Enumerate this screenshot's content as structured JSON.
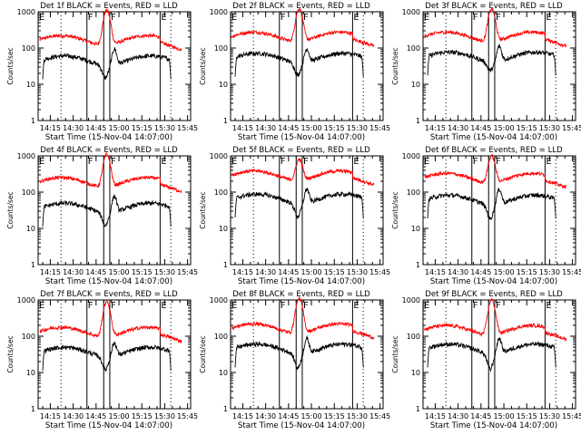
{
  "chart_data": [
    {
      "type": "line",
      "title": "Det 1f BLACK = Events, RED = LLD",
      "xlabel": "Start Time (15-Nov-04 14:07:00)",
      "ylabel": "Counts/sec",
      "y_scale": "log",
      "ylim": [
        1,
        1000
      ],
      "xlim": [
        "14:07",
        "15:47"
      ],
      "x_tick_labels": [
        "14:15",
        "14:30",
        "14:45",
        "15:00",
        "15:15",
        "15:30",
        "15:45"
      ],
      "y_tick_labels": [
        "1",
        "10",
        "100",
        "1000"
      ],
      "region_letters": [
        {
          "time": "14:07",
          "label": "E"
        },
        {
          "time": "14:39",
          "label": "F"
        },
        {
          "time": "14:54",
          "label": "F"
        },
        {
          "time": "15:27",
          "label": "E"
        }
      ],
      "solid_lines": [
        "14:39",
        "14:50",
        "14:54",
        "15:27"
      ],
      "dotted_lines": [
        "14:22",
        "15:34"
      ],
      "series": [
        {
          "name": "RED = LLD",
          "color": "#ff0000",
          "x_range": [
            "14:08",
            "15:41"
          ],
          "base": 200,
          "flare_peak": 1100
        },
        {
          "name": "BLACK = Events",
          "color": "#000000",
          "x_range": [
            "14:10",
            "15:34"
          ],
          "base": 55,
          "flare_peak": 110,
          "dip": 25
        }
      ]
    },
    {
      "type": "line",
      "title": "Det 2f BLACK = Events, RED = LLD",
      "xlabel": "Start Time (15-Nov-04 14:07:00)",
      "ylabel": "Counts/sec",
      "y_scale": "log",
      "ylim": [
        1,
        1000
      ],
      "xlim": [
        "14:07",
        "15:47"
      ],
      "x_tick_labels": [
        "14:15",
        "14:30",
        "14:45",
        "15:00",
        "15:15",
        "15:30",
        "15:45"
      ],
      "y_tick_labels": [
        "1",
        "10",
        "100",
        "1000"
      ],
      "region_letters": [
        {
          "time": "14:07",
          "label": "E"
        },
        {
          "time": "14:39",
          "label": "F"
        },
        {
          "time": "14:54",
          "label": "F"
        },
        {
          "time": "15:27",
          "label": "E"
        }
      ],
      "solid_lines": [
        "14:39",
        "14:50",
        "14:54",
        "15:27"
      ],
      "dotted_lines": [
        "14:22",
        "15:34"
      ],
      "series": [
        {
          "name": "RED = LLD",
          "color": "#ff0000",
          "x_range": [
            "14:08",
            "15:41"
          ],
          "base": 250,
          "flare_peak": 1200
        },
        {
          "name": "BLACK = Events",
          "color": "#000000",
          "x_range": [
            "14:10",
            "15:34"
          ],
          "base": 65,
          "flare_peak": 110,
          "dip": 30
        }
      ]
    },
    {
      "type": "line",
      "title": "Det 3f BLACK = Events, RED = LLD",
      "xlabel": "Start Time (15-Nov-04 14:07:00)",
      "ylabel": "Counts/sec",
      "y_scale": "log",
      "ylim": [
        1,
        1000
      ],
      "xlim": [
        "14:07",
        "15:47"
      ],
      "x_tick_labels": [
        "14:15",
        "14:30",
        "14:45",
        "15:00",
        "15:15",
        "15:30",
        "15:45"
      ],
      "y_tick_labels": [
        "1",
        "10",
        "100",
        "1000"
      ],
      "region_letters": [
        {
          "time": "14:07",
          "label": "E"
        },
        {
          "time": "14:39",
          "label": "F"
        },
        {
          "time": "14:54",
          "label": "F"
        },
        {
          "time": "15:27",
          "label": "E"
        }
      ],
      "solid_lines": [
        "14:39",
        "14:50",
        "14:54",
        "15:27"
      ],
      "dotted_lines": [
        "14:22",
        "15:34"
      ],
      "series": [
        {
          "name": "RED = LLD",
          "color": "#ff0000",
          "x_range": [
            "14:08",
            "15:41"
          ],
          "base": 250,
          "flare_peak": 1200
        },
        {
          "name": "BLACK = Events",
          "color": "#000000",
          "x_range": [
            "14:10",
            "15:34"
          ],
          "base": 70,
          "flare_peak": 130,
          "dip": 40
        }
      ]
    },
    {
      "type": "line",
      "title": "Det 4f BLACK = Events, RED = LLD",
      "xlabel": "Start Time (15-Nov-04 14:07:00)",
      "ylabel": "Counts/sec",
      "y_scale": "log",
      "ylim": [
        1,
        1000
      ],
      "xlim": [
        "14:07",
        "15:47"
      ],
      "x_tick_labels": [
        "14:15",
        "14:30",
        "14:45",
        "15:00",
        "15:15",
        "15:30",
        "15:45"
      ],
      "y_tick_labels": [
        "1",
        "10",
        "100",
        "1000"
      ],
      "region_letters": [
        {
          "time": "14:07",
          "label": "E"
        },
        {
          "time": "14:39",
          "label": "F"
        },
        {
          "time": "14:54",
          "label": "F"
        },
        {
          "time": "15:27",
          "label": "E"
        }
      ],
      "solid_lines": [
        "14:39",
        "14:50",
        "14:54",
        "15:27"
      ],
      "dotted_lines": [
        "14:22",
        "15:34"
      ],
      "series": [
        {
          "name": "RED = LLD",
          "color": "#ff0000",
          "x_range": [
            "14:08",
            "15:41"
          ],
          "base": 230,
          "flare_peak": 1100
        },
        {
          "name": "BLACK = Events",
          "color": "#000000",
          "x_range": [
            "14:10",
            "15:34"
          ],
          "base": 45,
          "flare_peak": 90,
          "dip": 20
        }
      ]
    },
    {
      "type": "line",
      "title": "Det 5f BLACK = Events, RED = LLD",
      "xlabel": "Start Time (15-Nov-04 14:07:00)",
      "ylabel": "Counts/sec",
      "y_scale": "log",
      "ylim": [
        1,
        1000
      ],
      "xlim": [
        "14:07",
        "15:47"
      ],
      "x_tick_labels": [
        "14:15",
        "14:30",
        "14:45",
        "15:00",
        "15:15",
        "15:30",
        "15:45"
      ],
      "y_tick_labels": [
        "1",
        "10",
        "100",
        "1000"
      ],
      "region_letters": [
        {
          "time": "14:07",
          "label": "E"
        },
        {
          "time": "14:39",
          "label": "F"
        },
        {
          "time": "14:54",
          "label": "F"
        },
        {
          "time": "15:27",
          "label": "E"
        }
      ],
      "solid_lines": [
        "14:39",
        "14:50",
        "14:54",
        "15:27"
      ],
      "dotted_lines": [
        "14:22",
        "15:34"
      ],
      "series": [
        {
          "name": "RED = LLD",
          "color": "#ff0000",
          "x_range": [
            "14:08",
            "15:41"
          ],
          "base": 350,
          "flare_peak": 800
        },
        {
          "name": "BLACK = Events",
          "color": "#000000",
          "x_range": [
            "14:10",
            "15:34"
          ],
          "base": 80,
          "flare_peak": 140,
          "dip": 35
        }
      ]
    },
    {
      "type": "line",
      "title": "Det 6f BLACK = Events, RED = LLD",
      "xlabel": "Start Time (15-Nov-04 14:07:00)",
      "ylabel": "Counts/sec",
      "y_scale": "log",
      "ylim": [
        1,
        1000
      ],
      "xlim": [
        "14:07",
        "15:47"
      ],
      "x_tick_labels": [
        "14:15",
        "14:30",
        "14:45",
        "15:00",
        "15:15",
        "15:30",
        "15:45"
      ],
      "y_tick_labels": [
        "1",
        "10",
        "100",
        "1000"
      ],
      "region_letters": [
        {
          "time": "14:07",
          "label": "E"
        },
        {
          "time": "14:39",
          "label": "F"
        },
        {
          "time": "14:54",
          "label": "F"
        },
        {
          "time": "15:27",
          "label": "E"
        }
      ],
      "solid_lines": [
        "14:39",
        "14:50",
        "14:54",
        "15:27"
      ],
      "dotted_lines": [
        "14:22",
        "15:34"
      ],
      "series": [
        {
          "name": "RED = LLD",
          "color": "#ff0000",
          "x_range": [
            "14:08",
            "15:41"
          ],
          "base": 300,
          "flare_peak": 1000
        },
        {
          "name": "BLACK = Events",
          "color": "#000000",
          "x_range": [
            "14:10",
            "15:34"
          ],
          "base": 75,
          "flare_peak": 140,
          "dip": 30
        }
      ]
    },
    {
      "type": "line",
      "title": "Det 7f BLACK = Events, RED = LLD",
      "xlabel": "Start Time (15-Nov-04 14:07:00)",
      "ylabel": "Counts/sec",
      "y_scale": "log",
      "ylim": [
        1,
        1000
      ],
      "xlim": [
        "14:07",
        "15:47"
      ],
      "x_tick_labels": [
        "14:15",
        "14:30",
        "14:45",
        "15:00",
        "15:15",
        "15:30",
        "15:45"
      ],
      "y_tick_labels": [
        "1",
        "10",
        "100",
        "1000"
      ],
      "region_letters": [
        {
          "time": "14:07",
          "label": "E"
        },
        {
          "time": "14:39",
          "label": "F"
        },
        {
          "time": "14:54",
          "label": "F"
        },
        {
          "time": "15:27",
          "label": "E"
        }
      ],
      "solid_lines": [
        "14:39",
        "14:50",
        "14:54",
        "15:27"
      ],
      "dotted_lines": [
        "14:22",
        "15:34"
      ],
      "series": [
        {
          "name": "RED = LLD",
          "color": "#ff0000",
          "x_range": [
            "14:08",
            "15:41"
          ],
          "base": 160,
          "flare_peak": 900
        },
        {
          "name": "BLACK = Events",
          "color": "#000000",
          "x_range": [
            "14:10",
            "15:34"
          ],
          "base": 45,
          "flare_peak": 75,
          "dip": 20
        }
      ]
    },
    {
      "type": "line",
      "title": "Det 8f BLACK = Events, RED = LLD",
      "xlabel": "Start Time (15-Nov-04 14:07:00)",
      "ylabel": "Counts/sec",
      "y_scale": "log",
      "ylim": [
        1,
        1000
      ],
      "xlim": [
        "14:07",
        "15:47"
      ],
      "x_tick_labels": [
        "14:15",
        "14:30",
        "14:45",
        "15:00",
        "15:15",
        "15:30",
        "15:45"
      ],
      "y_tick_labels": [
        "1",
        "10",
        "100",
        "1000"
      ],
      "region_letters": [
        {
          "time": "14:07",
          "label": "E"
        },
        {
          "time": "14:39",
          "label": "F"
        },
        {
          "time": "14:54",
          "label": "F"
        },
        {
          "time": "15:27",
          "label": "E"
        }
      ],
      "solid_lines": [
        "14:39",
        "14:50",
        "14:54",
        "15:27"
      ],
      "dotted_lines": [
        "14:22",
        "15:34"
      ],
      "series": [
        {
          "name": "RED = LLD",
          "color": "#ff0000",
          "x_range": [
            "14:08",
            "15:41"
          ],
          "base": 200,
          "flare_peak": 1100
        },
        {
          "name": "BLACK = Events",
          "color": "#000000",
          "x_range": [
            "14:10",
            "15:34"
          ],
          "base": 55,
          "flare_peak": 100,
          "dip": 22
        }
      ]
    },
    {
      "type": "line",
      "title": "Det 9f BLACK = Events, RED = LLD",
      "xlabel": "Start Time (15-Nov-04 14:07:00)",
      "ylabel": "Counts/sec",
      "y_scale": "log",
      "ylim": [
        1,
        1000
      ],
      "xlim": [
        "14:07",
        "15:47"
      ],
      "x_tick_labels": [
        "14:15",
        "14:30",
        "14:45",
        "15:00",
        "15:15",
        "15:30",
        "15:45"
      ],
      "y_tick_labels": [
        "1",
        "10",
        "100",
        "1000"
      ],
      "region_letters": [
        {
          "time": "14:07",
          "label": "E"
        },
        {
          "time": "14:39",
          "label": "F"
        },
        {
          "time": "14:54",
          "label": "F"
        },
        {
          "time": "15:27",
          "label": "E"
        }
      ],
      "solid_lines": [
        "14:39",
        "14:50",
        "14:54",
        "15:27"
      ],
      "dotted_lines": [
        "14:22",
        "15:34"
      ],
      "series": [
        {
          "name": "RED = LLD",
          "color": "#ff0000",
          "x_range": [
            "14:08",
            "15:41"
          ],
          "base": 180,
          "flare_peak": 1000
        },
        {
          "name": "BLACK = Events",
          "color": "#000000",
          "x_range": [
            "14:10",
            "15:34"
          ],
          "base": 55,
          "flare_peak": 100,
          "dip": 20
        }
      ]
    }
  ]
}
